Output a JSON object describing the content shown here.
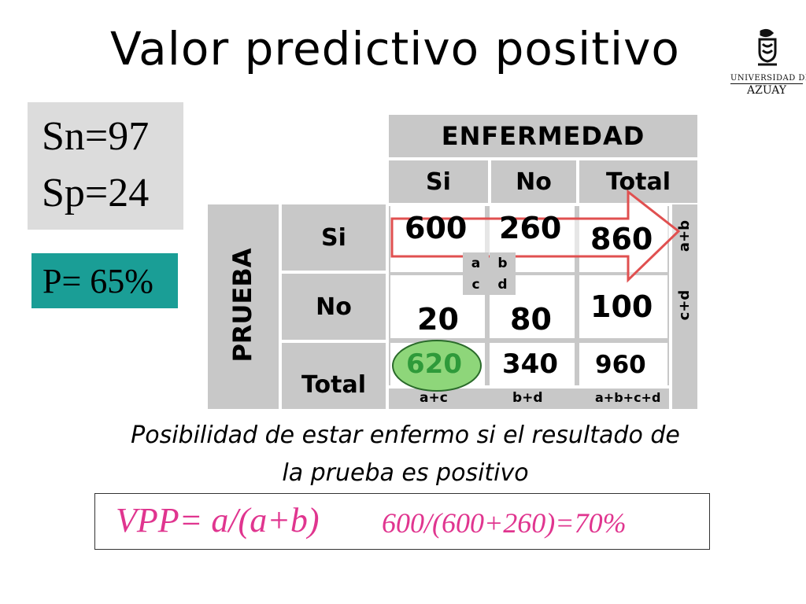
{
  "title": "Valor predictivo positivo",
  "logo": {
    "line1": "UNIVERSIDAD DEL",
    "line2": "AZUAY",
    "icon": "university-crest-icon"
  },
  "stats": {
    "sn": "Sn=97",
    "sp": "Sp=24",
    "p": "P= 65%"
  },
  "table": {
    "group_header": "ENFERMEDAD",
    "col_headers": [
      "Si",
      "No",
      "Total"
    ],
    "row_group": "PRUEBA",
    "row_headers": [
      "Si",
      "No",
      "Total"
    ],
    "values": {
      "a": "600",
      "b": "260",
      "ab": "860",
      "c": "20",
      "d": "80",
      "cd": "100",
      "ac": "620",
      "bd": "340",
      "total": "960"
    },
    "cell_letters": [
      "a",
      "b",
      "c",
      "d"
    ],
    "row_sum_labels": [
      "a+b",
      "c+d"
    ],
    "col_sum_labels": [
      "a+c",
      "b+d",
      "a+b+c+d"
    ]
  },
  "caption": {
    "line1": "Posibilidad de estar enfermo si el resultado de",
    "line2": "la prueba es positivo"
  },
  "formula": {
    "main": "VPP= a/(a+b)",
    "calc": "600/(600+260)=70%"
  },
  "colors": {
    "grey_cell": "#c8c8c8",
    "teal": "#1a9e96",
    "arrow_red": "#e05050",
    "highlight_green": "#8ed67a",
    "highlight_text": "#2e9a3a",
    "formula_pink": "#e0358f"
  }
}
